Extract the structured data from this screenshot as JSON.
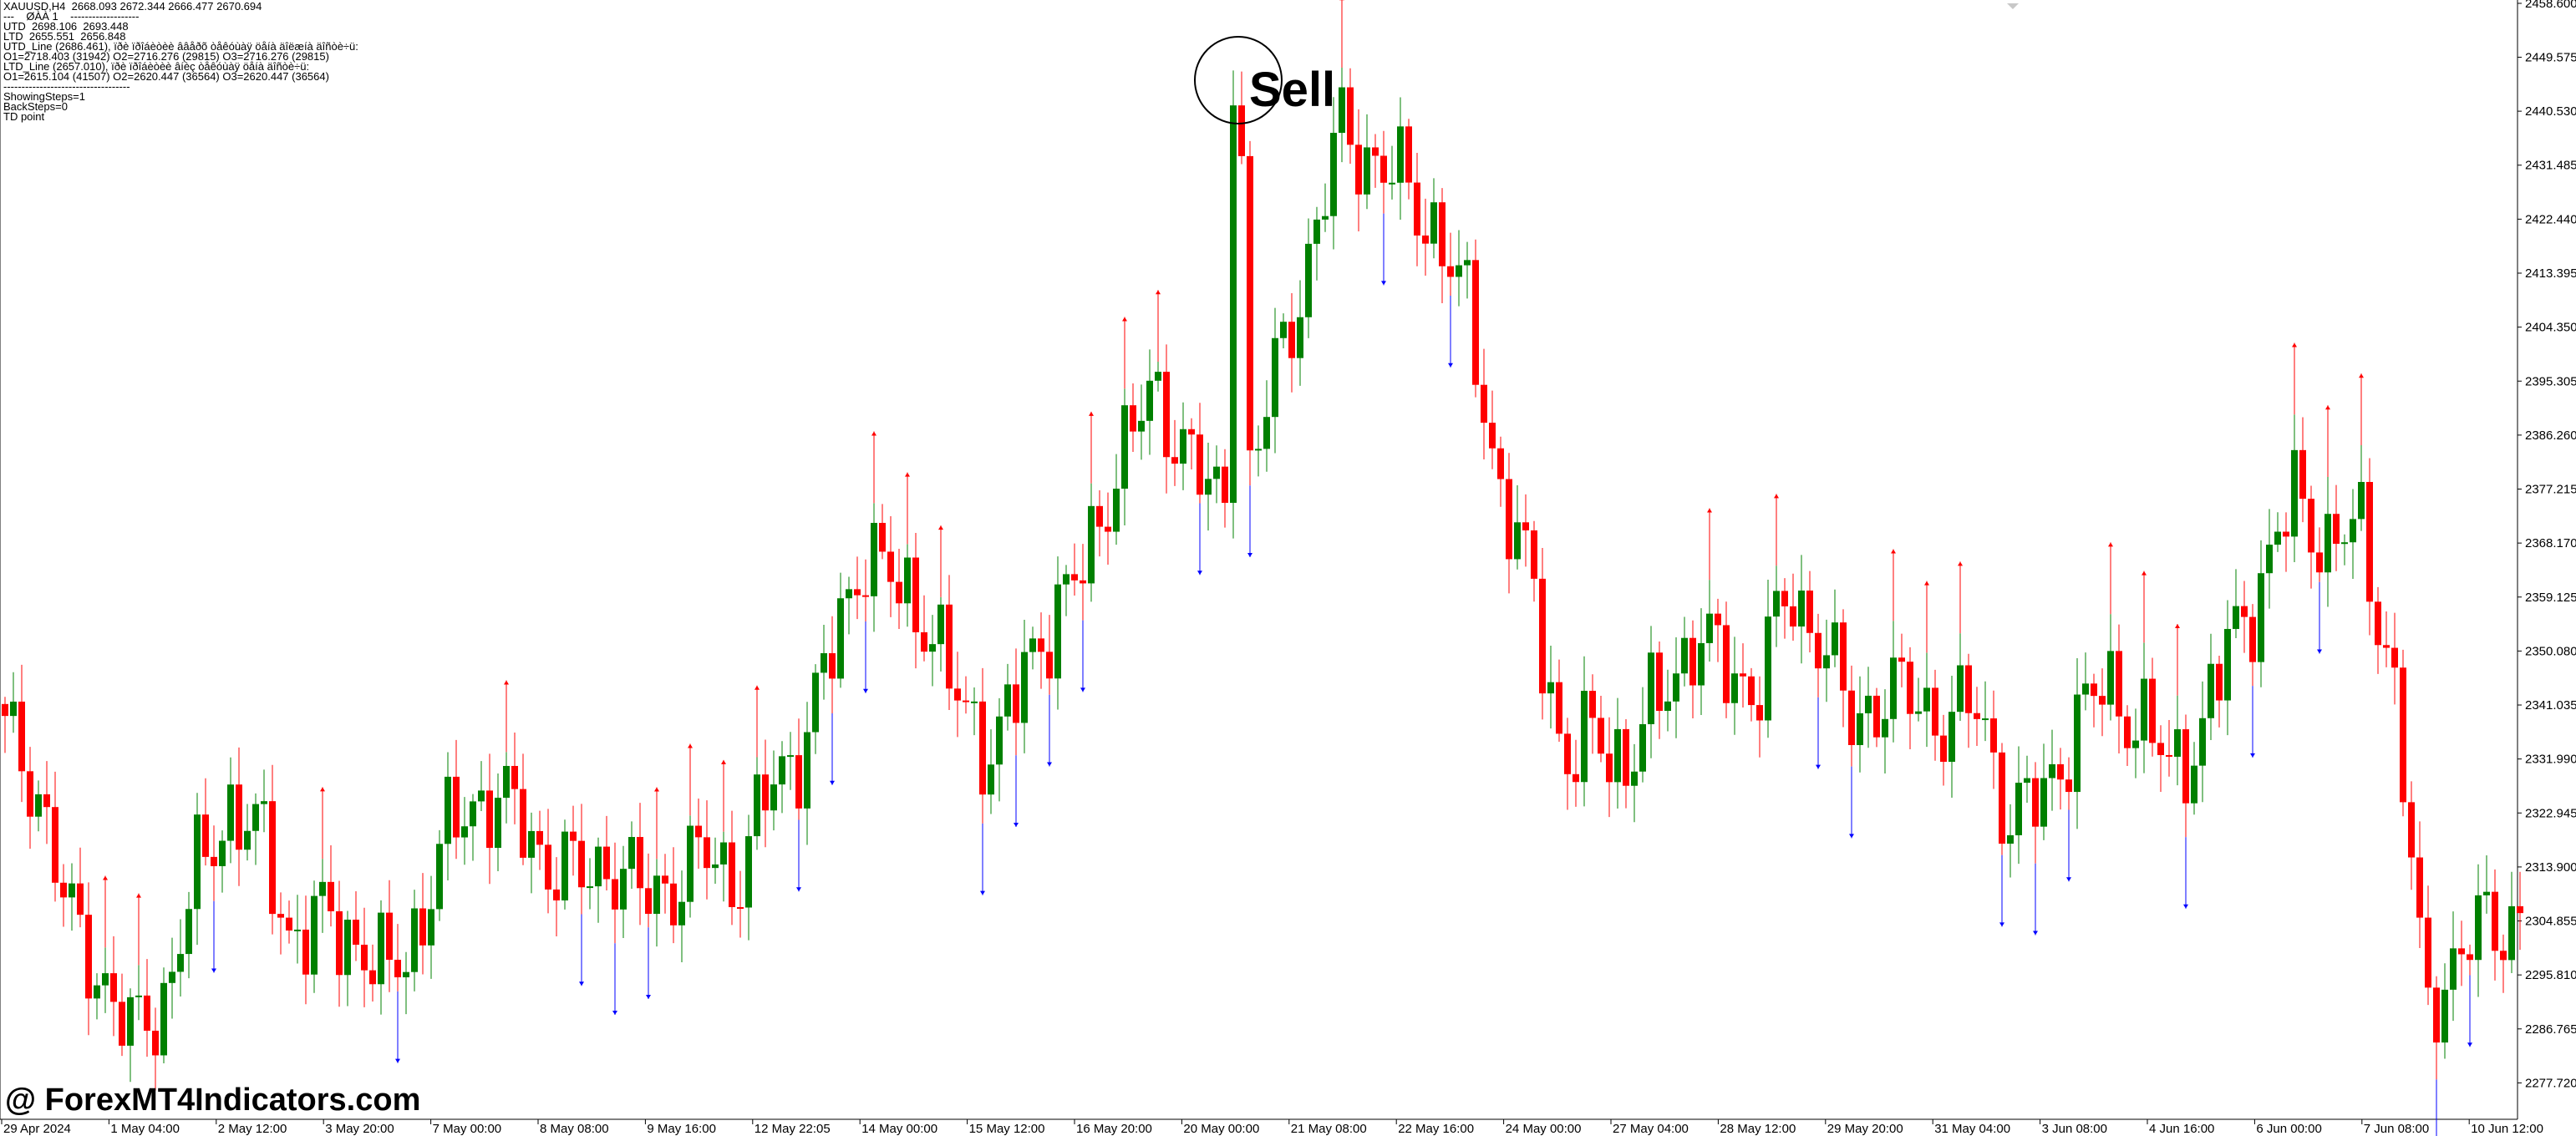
{
  "info_panel": {
    "lines": [
      "XAUUSD,H4  2668.093 2672.344 2666.477 2670.694",
      "---    ØÀÀ 1    -------------------",
      "UTD  2698.106  2693.448",
      "LTD  2655.551  2656.848",
      "UTD_Line (2686.461), ïðè ïðîáèòèè ââåðõ òåêóùàÿ öåíà äîëæíà äîñòè÷ü:",
      "O1=2718.403 (31942) O2=2716.276 (29815) O3=2716.276 (29815)",
      "LTD_Line (2657.010), ïðè ïðîáèòèè âíèç òåêóùàÿ öåíà äîñòè÷ü:",
      "O1=2615.104 (41507) O2=2620.447 (36564) O3=2620.447 (36564)",
      "-----------------------------------",
      "ShowingSteps=1",
      "BackSteps=0",
      "TD point"
    ]
  },
  "annotation": {
    "label": "Sell"
  },
  "watermark": "@ ForexMT4Indicators.com",
  "colors": {
    "bull": "#008000",
    "bear": "#ff0000",
    "up_arrow": "#ff0000",
    "down_arrow": "#0000ff",
    "circle": "#000000"
  },
  "chart_data": {
    "type": "candlestick",
    "symbol": "XAUUSD,H4",
    "ylim": [
      2273.3,
      2458.6
    ],
    "y_ticks": [
      "2458.600",
      "2449.575",
      "2440.530",
      "2431.485",
      "2422.440",
      "2413.395",
      "2404.350",
      "2395.305",
      "2386.260",
      "2377.215",
      "2368.170",
      "2359.125",
      "2350.080",
      "2341.035",
      "2331.990",
      "2322.945",
      "2313.900",
      "2304.855",
      "2295.810",
      "2286.765",
      "2277.720"
    ],
    "x_ticks": [
      "29 Apr 2024",
      "1 May 04:00",
      "2 May 12:00",
      "3 May 20:00",
      "7 May 00:00",
      "8 May 08:00",
      "9 May 16:00",
      "12 May 22:05",
      "14 May 00:00",
      "15 May 12:00",
      "16 May 20:00",
      "20 May 00:00",
      "21 May 08:00",
      "22 May 16:00",
      "24 May 00:00",
      "27 May 04:00",
      "28 May 12:00",
      "29 May 20:00",
      "31 May 04:00",
      "3 Jun 08:00",
      "4 Jun 16:00",
      "6 Jun 00:00",
      "7 Jun 08:00",
      "10 Jun 12:00"
    ],
    "waypoints": [
      2336,
      2328,
      2305,
      2296,
      2285,
      2292,
      2312,
      2324,
      2319,
      2302,
      2305,
      2302,
      2295,
      2304,
      2321,
      2326,
      2323,
      2315,
      2312,
      2315,
      2309,
      2311,
      2316,
      2312,
      2327,
      2334,
      2350,
      2368,
      2360,
      2356,
      2340,
      2334,
      2345,
      2358,
      2364,
      2384,
      2392,
      2386,
      2374,
      2378,
      2398,
      2417,
      2438,
      2432,
      2428,
      2420,
      2406,
      2376,
      2360,
      2331,
      2336,
      2331,
      2343,
      2352,
      2348,
      2343,
      2360,
      2353,
      2338,
      2343,
      2342,
      2338,
      2341,
      2321,
      2326,
      2337,
      2345,
      2338,
      2331,
      2336,
      2354,
      2362,
      2378,
      2366,
      2372,
      2345,
      2292,
      2297,
      2306,
      2304
    ],
    "sell_signal": {
      "label": "Sell",
      "candle_index": 148
    }
  }
}
